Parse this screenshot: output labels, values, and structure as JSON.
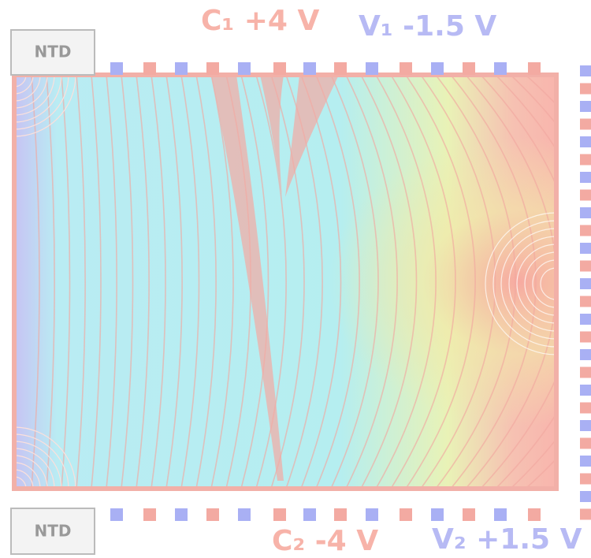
{
  "labels": {
    "top_left": "C₁ +4 V",
    "top_right": "V₁ -1.5 V",
    "bottom_left": "C₂ -4 V",
    "bottom_right": "V₂ +1.5 V"
  },
  "sensors": {
    "top": "NTD",
    "bottom": "NTD"
  }
}
